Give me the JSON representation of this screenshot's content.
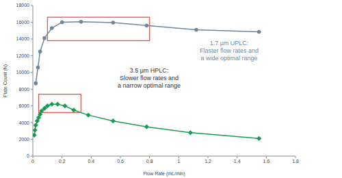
{
  "chart_data": {
    "type": "line",
    "x_label": "Flow Rate (mL/min)",
    "y_label": "Plate Count (N)",
    "xlim": [
      0,
      1.8
    ],
    "xticks": [
      0,
      0.2,
      0.4,
      0.6,
      0.8,
      1,
      1.2,
      1.4,
      1.6,
      1.8
    ],
    "ylim": [
      0,
      18000
    ],
    "yticks": [
      0,
      2000,
      4000,
      6000,
      8000,
      10000,
      12000,
      14000,
      16000,
      18000
    ],
    "grid": false,
    "series": [
      {
        "name": "1.7 µm UPLC",
        "color": "#6e879b",
        "marker": "circle",
        "x": [
          0.02,
          0.035,
          0.05,
          0.08,
          0.13,
          0.2,
          0.33,
          0.55,
          0.78,
          1.12,
          1.55
        ],
        "values": [
          8700,
          10600,
          12500,
          14100,
          15300,
          16000,
          16050,
          15950,
          15600,
          15100,
          14850
        ],
        "highlight": {
          "xlim": [
            0.1,
            0.8
          ],
          "ylim": [
            13800,
            16600
          ],
          "color": "#e0524a"
        },
        "annotation": {
          "lines": [
            "1.7 µm UPLC:",
            "Flaster flow rates and",
            "a wide optimal range"
          ],
          "color": "#6e8aa2"
        }
      },
      {
        "name": "3.5 µm HPLC",
        "color": "#1c9a55",
        "marker": "diamond",
        "x": [
          0.01,
          0.015,
          0.02,
          0.03,
          0.04,
          0.05,
          0.06,
          0.08,
          0.1,
          0.13,
          0.17,
          0.22,
          0.28,
          0.38,
          0.55,
          0.78,
          1.08,
          1.55
        ],
        "values": [
          2500,
          3100,
          3700,
          4200,
          4600,
          5000,
          5400,
          5700,
          6000,
          6200,
          6200,
          6000,
          5500,
          4900,
          4200,
          3500,
          2800,
          2100
        ],
        "highlight": {
          "xlim": [
            0.04,
            0.33
          ],
          "ylim": [
            5200,
            7400
          ],
          "color": "#e0524a"
        },
        "annotation": {
          "lines": [
            "3.5 µm HPLC:",
            "Slower flow rates and",
            "a narrow optimal range"
          ],
          "color": "#333333"
        }
      }
    ]
  }
}
